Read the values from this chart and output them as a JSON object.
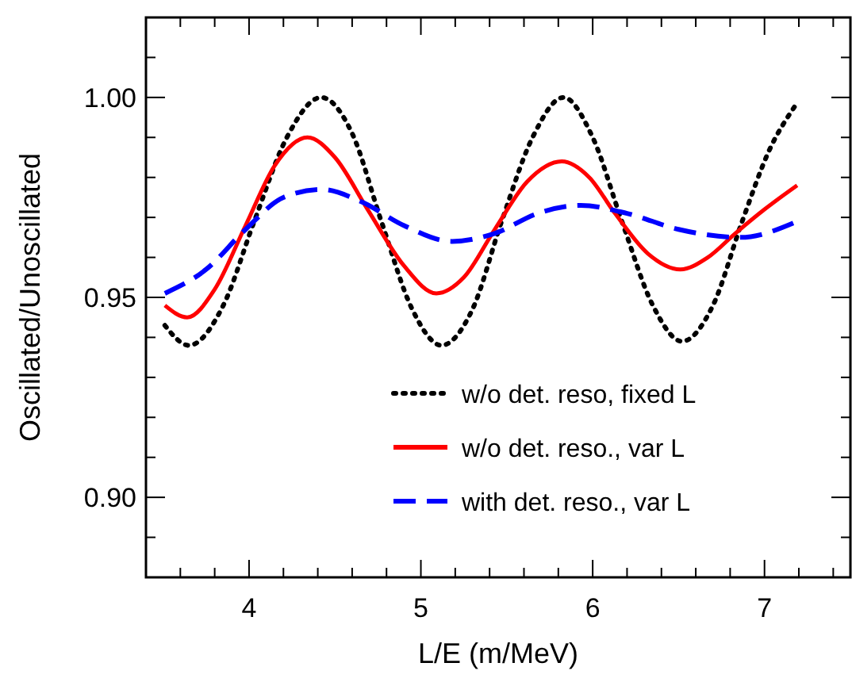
{
  "chart_data": {
    "type": "line",
    "xlabel": "L/E (m/MeV)",
    "ylabel": "Oscillated/Unoscillated",
    "xlim": [
      3.4,
      7.5
    ],
    "ylim": [
      0.88,
      1.02
    ],
    "xticks": [
      {
        "value": 3.6,
        "label": null
      },
      {
        "value": 3.8,
        "label": null
      },
      4,
      {
        "value": 4.2,
        "label": null
      },
      {
        "value": 4.4,
        "label": null
      },
      {
        "value": 4.6,
        "label": null
      },
      {
        "value": 4.8,
        "label": null
      },
      5,
      {
        "value": 5.2,
        "label": null
      },
      {
        "value": 5.4,
        "label": null
      },
      {
        "value": 5.6,
        "label": null
      },
      {
        "value": 5.8,
        "label": null
      },
      6,
      {
        "value": 6.2,
        "label": null
      },
      {
        "value": 6.4,
        "label": null
      },
      {
        "value": 6.6,
        "label": null
      },
      {
        "value": 6.8,
        "label": null
      },
      7,
      {
        "value": 7.2,
        "label": null
      },
      {
        "value": 7.4,
        "label": null
      }
    ],
    "yticks": [
      {
        "value": 0.89,
        "label": null
      },
      {
        "value": 0.9,
        "label": "0.90"
      },
      {
        "value": 0.91,
        "label": null
      },
      {
        "value": 0.92,
        "label": null
      },
      {
        "value": 0.93,
        "label": null
      },
      {
        "value": 0.94,
        "label": null
      },
      {
        "value": 0.95,
        "label": "0.95"
      },
      {
        "value": 0.96,
        "label": null
      },
      {
        "value": 0.97,
        "label": null
      },
      {
        "value": 0.98,
        "label": null
      },
      {
        "value": 0.99,
        "label": null
      },
      {
        "value": 1.0,
        "label": "1.00"
      },
      {
        "value": 1.01,
        "label": null
      }
    ],
    "grid": false,
    "legend": "bottom right",
    "marker": "none",
    "series": [
      {
        "name": "w/o det. reso, fixed L",
        "color": "#000000",
        "line_style": "dotted",
        "x": [
          3.51,
          3.65,
          3.85,
          4.03,
          4.22,
          4.42,
          4.6,
          4.77,
          4.95,
          5.12,
          5.3,
          5.47,
          5.65,
          5.83,
          6.0,
          6.17,
          6.35,
          6.52,
          6.7,
          6.87,
          7.03,
          7.18
        ],
        "values": [
          0.943,
          0.938,
          0.948,
          0.969,
          0.99,
          1.0,
          0.991,
          0.969,
          0.947,
          0.938,
          0.947,
          0.969,
          0.99,
          1.0,
          0.99,
          0.969,
          0.948,
          0.939,
          0.948,
          0.969,
          0.987,
          0.998
        ]
      },
      {
        "name": "w/o det. reso., var L",
        "color": "#ff0000",
        "line_style": "solid",
        "x": [
          3.51,
          3.64,
          3.8,
          3.98,
          4.15,
          4.34,
          4.5,
          4.69,
          4.9,
          5.09,
          5.25,
          5.43,
          5.62,
          5.82,
          5.98,
          6.13,
          6.32,
          6.51,
          6.67,
          6.83,
          7.0,
          7.19
        ],
        "values": [
          0.948,
          0.945,
          0.952,
          0.968,
          0.983,
          0.99,
          0.985,
          0.972,
          0.958,
          0.951,
          0.955,
          0.967,
          0.979,
          0.984,
          0.98,
          0.971,
          0.961,
          0.957,
          0.96,
          0.966,
          0.972,
          0.978
        ]
      },
      {
        "name": "with det. reso., var L",
        "color": "#0000ff",
        "line_style": "dashed",
        "x": [
          3.51,
          3.75,
          3.98,
          4.2,
          4.42,
          4.65,
          4.9,
          5.18,
          5.43,
          5.68,
          5.93,
          6.2,
          6.5,
          6.86,
          7.19
        ],
        "values": [
          0.951,
          0.957,
          0.967,
          0.975,
          0.977,
          0.974,
          0.968,
          0.964,
          0.966,
          0.971,
          0.973,
          0.971,
          0.967,
          0.965,
          0.969
        ]
      }
    ]
  }
}
